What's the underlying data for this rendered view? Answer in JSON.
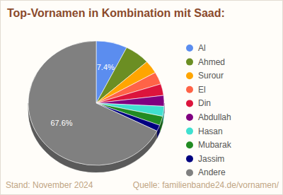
{
  "chart_data": {
    "type": "pie",
    "title": "Top-Vornamen in Kombination mit Saad:",
    "categories": [
      "Al",
      "Ahmed",
      "Surour",
      "El",
      "Din",
      "Abdullah",
      "Hasan",
      "Mubarak",
      "Jassim",
      "Andere"
    ],
    "values": [
      7.4,
      6.0,
      3.4,
      3.2,
      3.0,
      2.8,
      2.6,
      2.4,
      1.6,
      67.6
    ],
    "value_labels": [
      "7.4%",
      null,
      null,
      null,
      null,
      null,
      null,
      null,
      null,
      "67.6%"
    ],
    "colors": [
      "#5b8def",
      "#6b8e23",
      "#ffa500",
      "#ff6347",
      "#dc143c",
      "#800080",
      "#40e0d0",
      "#228b22",
      "#000080",
      "#808080"
    ],
    "legend": "right",
    "data_labels": true
  },
  "footer": {
    "left": "Stand: November 2024",
    "right": "Quelle: familienbande24.de/vornamen/"
  }
}
